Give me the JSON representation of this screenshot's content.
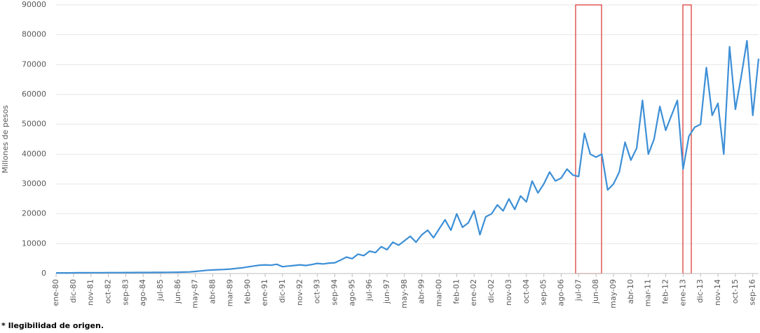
{
  "chart_data": {
    "type": "line",
    "y_label": "Millones de pesos",
    "note": "* Ilegibilidad de origen.",
    "categories": [
      "ene-80",
      null,
      null,
      "dic-80",
      null,
      null,
      "nov-81",
      null,
      null,
      "oct-82",
      null,
      null,
      "sep-83",
      null,
      null,
      "ago-84",
      null,
      null,
      "jul-85",
      null,
      null,
      "jun-86",
      null,
      null,
      "may-87",
      null,
      null,
      "abr-88",
      null,
      null,
      "mar-89",
      null,
      null,
      "feb-90",
      null,
      null,
      "ene-91",
      null,
      null,
      "dic-91",
      null,
      null,
      "nov-92",
      null,
      null,
      "oct-93",
      null,
      null,
      "sep-94",
      null,
      null,
      "ago-95",
      null,
      null,
      "jul-96",
      null,
      null,
      "jun-97",
      null,
      null,
      "may-98",
      null,
      null,
      "abr-99",
      null,
      null,
      "mar-00",
      null,
      null,
      "feb-01",
      null,
      null,
      "ene-02",
      null,
      null,
      "dic-02",
      null,
      null,
      "nov-03",
      null,
      null,
      "oct-04",
      null,
      null,
      "sep-05",
      null,
      null,
      "ago-06",
      null,
      null,
      "jul-07",
      null,
      null,
      "jun-08",
      null,
      null,
      "may-09",
      null,
      null,
      "abr-10",
      null,
      null,
      "mar-11",
      null,
      null,
      "feb-12",
      null,
      null,
      "ene-13",
      null,
      null,
      "dic-13",
      null,
      null,
      "nov-14",
      null,
      null,
      "oct-15",
      null,
      null,
      "sep-16",
      null
    ],
    "series": [
      {
        "color": "#3d8fd6",
        "values": [
          200,
          200,
          220,
          240,
          250,
          260,
          270,
          280,
          290,
          300,
          300,
          310,
          320,
          330,
          340,
          350,
          360,
          370,
          380,
          400,
          420,
          450,
          500,
          550,
          700,
          900,
          1100,
          1200,
          1300,
          1350,
          1500,
          1700,
          1900,
          2200,
          2500,
          2800,
          2900,
          2800,
          3100,
          2300,
          2500,
          2700,
          2900,
          2700,
          3000,
          3400,
          3200,
          3500,
          3600,
          4500,
          5500,
          5000,
          6500,
          6000,
          7500,
          7000,
          9000,
          8000,
          10500,
          9500,
          11000,
          12500,
          10500,
          13000,
          14500,
          12000,
          15000,
          18000,
          14500,
          20000,
          15500,
          17000,
          21000,
          13000,
          19000,
          20000,
          23000,
          21000,
          25000,
          21500,
          26000,
          24000,
          31000,
          27000,
          30000,
          34000,
          31000,
          32000,
          35000,
          33000,
          32500,
          47000,
          40000,
          39000,
          40000,
          28000,
          30000,
          34000,
          44000,
          38000,
          42000,
          58000,
          40000,
          45000,
          56000,
          48000,
          53000,
          58000,
          35000,
          46000,
          49000,
          50000,
          69000,
          53000,
          57000,
          40000,
          76000,
          55000,
          66000,
          78000,
          53000,
          72000
        ]
      }
    ],
    "ylim": [
      0,
      90000
    ],
    "yticks": [
      0,
      10000,
      20000,
      30000,
      40000,
      50000,
      60000,
      70000,
      80000,
      90000
    ],
    "grid": true
  }
}
